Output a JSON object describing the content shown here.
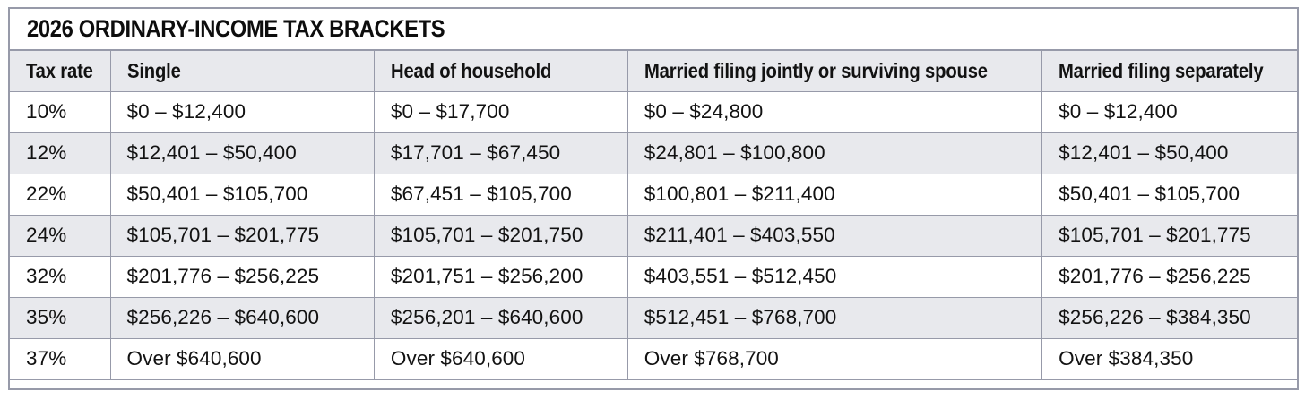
{
  "title": "2026 ORDINARY-INCOME TAX BRACKETS",
  "colors": {
    "border": "#979aa9",
    "header_bg": "#e8e9ed",
    "row_alt_bg": "#e8e9ed",
    "row_bg": "#ffffff",
    "text": "#121212"
  },
  "table": {
    "columns": [
      "Tax rate",
      "Single",
      "Head of household",
      "Married filing jointly or surviving spouse",
      "Married filing separately"
    ],
    "rows": [
      [
        "10%",
        "$0 – $12,400",
        "$0 – $17,700",
        "$0 – $24,800",
        "$0 – $12,400"
      ],
      [
        "12%",
        "$12,401 – $50,400",
        "$17,701 – $67,450",
        "$24,801 – $100,800",
        "$12,401 – $50,400"
      ],
      [
        "22%",
        "$50,401 – $105,700",
        "$67,451 – $105,700",
        "$100,801 – $211,400",
        "$50,401 – $105,700"
      ],
      [
        "24%",
        "$105,701 – $201,775",
        "$105,701 – $201,750",
        "$211,401 – $403,550",
        "$105,701 – $201,775"
      ],
      [
        "32%",
        "$201,776 – $256,225",
        "$201,751 – $256,200",
        "$403,551 – $512,450",
        "$201,776 – $256,225"
      ],
      [
        "35%",
        "$256,226 – $640,600",
        "$256,201 – $640,600",
        "$512,451 – $768,700",
        "$256,226 – $384,350"
      ],
      [
        "37%",
        "Over $640,600",
        "Over $640,600",
        "Over $768,700",
        "Over $384,350"
      ]
    ]
  },
  "chart_data": {
    "type": "table",
    "title": "2026 ORDINARY-INCOME TAX BRACKETS",
    "columns": [
      "Tax rate",
      "Single",
      "Head of household",
      "Married filing jointly or surviving spouse",
      "Married filing separately"
    ],
    "rows": [
      [
        "10%",
        "$0 – $12,400",
        "$0 – $17,700",
        "$0 – $24,800",
        "$0 – $12,400"
      ],
      [
        "12%",
        "$12,401 – $50,400",
        "$17,701 – $67,450",
        "$24,801 – $100,800",
        "$12,401 – $50,400"
      ],
      [
        "22%",
        "$50,401 – $105,700",
        "$67,451 – $105,700",
        "$100,801 – $211,400",
        "$50,401 – $105,700"
      ],
      [
        "24%",
        "$105,701 – $201,775",
        "$105,701 – $201,750",
        "$211,401 – $403,550",
        "$105,701 – $201,775"
      ],
      [
        "32%",
        "$201,776 – $256,225",
        "$201,751 – $256,200",
        "$403,551 – $512,450",
        "$201,776 – $256,225"
      ],
      [
        "35%",
        "$256,226 – $640,600",
        "$256,201 – $640,600",
        "$512,451 – $768,700",
        "$256,226 – $384,350"
      ],
      [
        "37%",
        "Over $640,600",
        "Over $640,600",
        "Over $768,700",
        "Over $384,350"
      ]
    ],
    "layout": {
      "striped_rows": true,
      "stripe_pattern": "odd data rows white, even data rows light gray",
      "header_position": "top"
    }
  }
}
